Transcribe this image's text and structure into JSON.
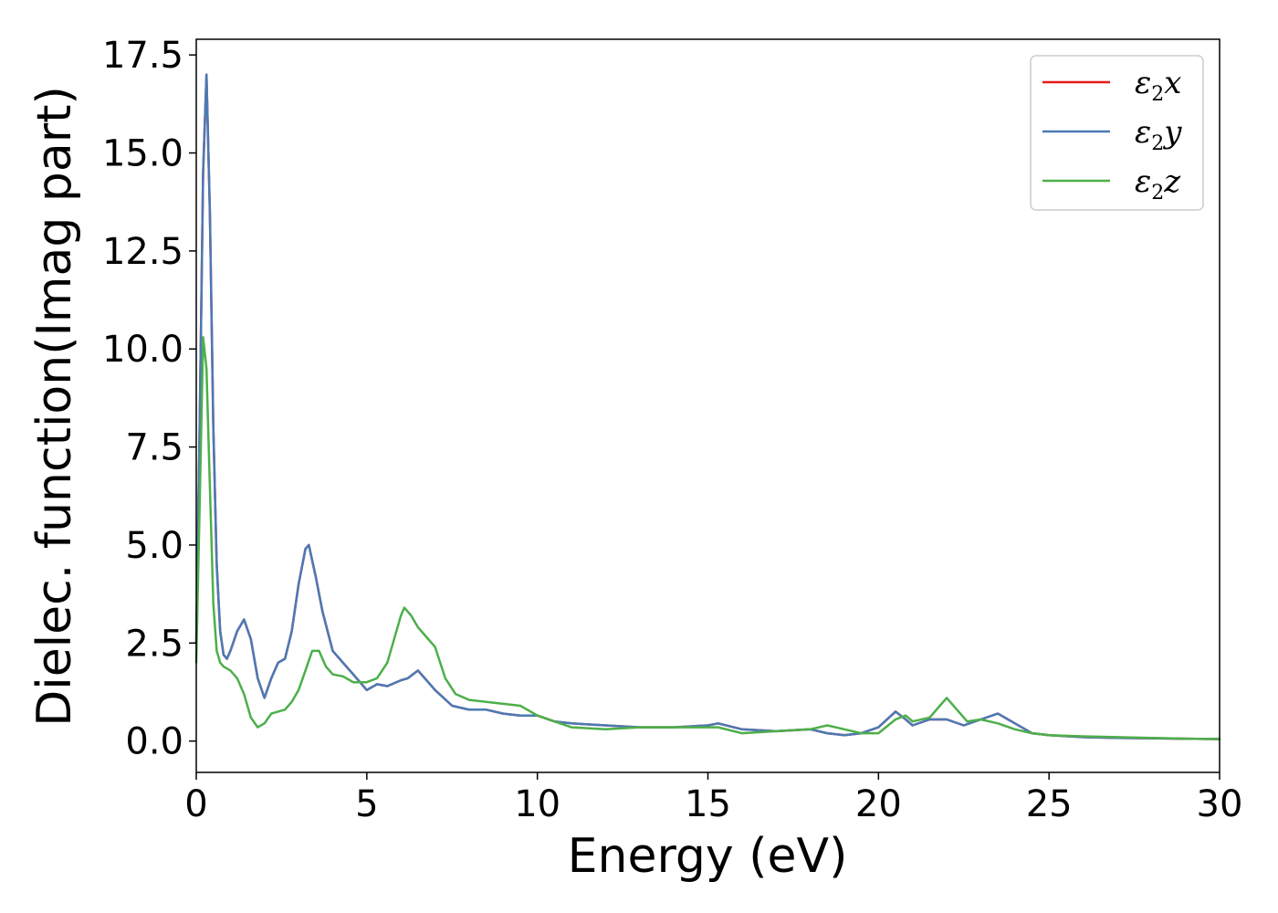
{
  "chart_data": {
    "type": "line",
    "xlabel": "Energy (eV)",
    "ylabel": "Dielec. function(Imag part)",
    "xlim": [
      0,
      30
    ],
    "ylim": [
      -0.8,
      17.9
    ],
    "xticks": [
      0,
      5,
      10,
      15,
      20,
      25,
      30
    ],
    "xtick_labels": [
      "0",
      "5",
      "10",
      "15",
      "20",
      "25",
      "30"
    ],
    "yticks": [
      0,
      2.5,
      5,
      7.5,
      10,
      12.5,
      15,
      17.5
    ],
    "ytick_labels": [
      "0.0",
      "2.5",
      "5.0",
      "7.5",
      "10.0",
      "12.5",
      "15.0",
      "17.5"
    ],
    "grid": false,
    "legend_position": "top-right",
    "series": [
      {
        "name": "ε2x",
        "legend_main": "ε",
        "legend_sub": "2",
        "legend_suffix": "x",
        "color": "#e41a1c",
        "x": [
          0,
          0.1,
          0.2,
          0.3,
          0.4,
          0.5,
          0.6,
          0.7,
          0.8,
          0.9,
          1.0,
          1.2,
          1.4,
          1.6,
          1.8,
          2.0,
          2.2,
          2.4,
          2.6,
          2.8,
          3.0,
          3.2,
          3.3,
          3.5,
          3.7,
          4.0,
          4.3,
          4.6,
          5.0,
          5.3,
          5.6,
          6.0,
          6.2,
          6.5,
          6.8,
          7.0,
          7.5,
          8.0,
          8.5,
          9.0,
          9.5,
          10.0,
          10.5,
          11.0,
          12.0,
          13.0,
          14.0,
          15.0,
          15.3,
          16.0,
          17.0,
          18.0,
          18.5,
          19.0,
          19.5,
          20.0,
          20.5,
          20.8,
          21.0,
          21.5,
          22.0,
          22.5,
          23.0,
          23.5,
          24.0,
          24.5,
          25.0,
          26.0,
          27.0,
          28.0,
          29.0,
          30.0
        ],
        "y": [
          2.5,
          8.0,
          14.5,
          17.0,
          13.5,
          8.0,
          4.5,
          2.8,
          2.2,
          2.1,
          2.3,
          2.8,
          3.1,
          2.6,
          1.6,
          1.1,
          1.6,
          2.0,
          2.1,
          2.8,
          4.0,
          4.9,
          5.0,
          4.2,
          3.3,
          2.3,
          2.0,
          1.7,
          1.3,
          1.45,
          1.4,
          1.55,
          1.6,
          1.8,
          1.5,
          1.3,
          0.9,
          0.8,
          0.8,
          0.7,
          0.65,
          0.65,
          0.5,
          0.45,
          0.4,
          0.35,
          0.35,
          0.4,
          0.45,
          0.3,
          0.25,
          0.3,
          0.2,
          0.15,
          0.2,
          0.35,
          0.75,
          0.55,
          0.4,
          0.55,
          0.55,
          0.4,
          0.55,
          0.7,
          0.45,
          0.2,
          0.15,
          0.1,
          0.08,
          0.07,
          0.06,
          0.05
        ]
      },
      {
        "name": "ε2y",
        "legend_main": "ε",
        "legend_sub": "2",
        "legend_suffix": "y",
        "color": "#4a7ab5",
        "x": [
          0,
          0.1,
          0.2,
          0.3,
          0.4,
          0.5,
          0.6,
          0.7,
          0.8,
          0.9,
          1.0,
          1.2,
          1.4,
          1.6,
          1.8,
          2.0,
          2.2,
          2.4,
          2.6,
          2.8,
          3.0,
          3.2,
          3.3,
          3.5,
          3.7,
          4.0,
          4.3,
          4.6,
          5.0,
          5.3,
          5.6,
          6.0,
          6.2,
          6.5,
          6.8,
          7.0,
          7.5,
          8.0,
          8.5,
          9.0,
          9.5,
          10.0,
          10.5,
          11.0,
          12.0,
          13.0,
          14.0,
          15.0,
          15.3,
          16.0,
          17.0,
          18.0,
          18.5,
          19.0,
          19.5,
          20.0,
          20.5,
          20.8,
          21.0,
          21.5,
          22.0,
          22.5,
          23.0,
          23.5,
          24.0,
          24.5,
          25.0,
          26.0,
          27.0,
          28.0,
          29.0,
          30.0
        ],
        "y": [
          2.5,
          8.0,
          14.5,
          17.0,
          13.5,
          8.0,
          4.5,
          2.8,
          2.2,
          2.1,
          2.3,
          2.8,
          3.1,
          2.6,
          1.6,
          1.1,
          1.6,
          2.0,
          2.1,
          2.8,
          4.0,
          4.9,
          5.0,
          4.2,
          3.3,
          2.3,
          2.0,
          1.7,
          1.3,
          1.45,
          1.4,
          1.55,
          1.6,
          1.8,
          1.5,
          1.3,
          0.9,
          0.8,
          0.8,
          0.7,
          0.65,
          0.65,
          0.5,
          0.45,
          0.4,
          0.35,
          0.35,
          0.4,
          0.45,
          0.3,
          0.25,
          0.3,
          0.2,
          0.15,
          0.2,
          0.35,
          0.75,
          0.55,
          0.4,
          0.55,
          0.55,
          0.4,
          0.55,
          0.7,
          0.45,
          0.2,
          0.15,
          0.1,
          0.08,
          0.07,
          0.06,
          0.05
        ]
      },
      {
        "name": "ε2z",
        "legend_main": "ε",
        "legend_sub": "2",
        "legend_suffix": "z",
        "color": "#4daf4a",
        "x": [
          0,
          0.1,
          0.2,
          0.3,
          0.4,
          0.5,
          0.6,
          0.7,
          0.8,
          1.0,
          1.2,
          1.4,
          1.6,
          1.8,
          2.0,
          2.2,
          2.4,
          2.6,
          2.8,
          3.0,
          3.2,
          3.4,
          3.6,
          3.8,
          4.0,
          4.3,
          4.6,
          5.0,
          5.3,
          5.6,
          6.0,
          6.1,
          6.3,
          6.5,
          6.8,
          7.0,
          7.3,
          7.6,
          8.0,
          8.5,
          9.0,
          9.5,
          10.0,
          10.5,
          11.0,
          12.0,
          13.0,
          14.0,
          15.0,
          15.3,
          16.0,
          17.0,
          18.0,
          18.5,
          19.0,
          19.5,
          20.0,
          20.5,
          20.8,
          21.0,
          21.5,
          21.8,
          22.0,
          22.3,
          22.6,
          23.0,
          23.5,
          24.0,
          24.5,
          25.0,
          26.0,
          27.0,
          28.0,
          29.0,
          30.0
        ],
        "y": [
          2.0,
          6.0,
          10.3,
          9.5,
          6.5,
          3.5,
          2.3,
          2.0,
          1.9,
          1.8,
          1.6,
          1.2,
          0.6,
          0.35,
          0.45,
          0.7,
          0.75,
          0.8,
          1.0,
          1.3,
          1.8,
          2.3,
          2.3,
          1.9,
          1.7,
          1.65,
          1.5,
          1.5,
          1.6,
          2.0,
          3.2,
          3.4,
          3.2,
          2.9,
          2.6,
          2.4,
          1.6,
          1.2,
          1.05,
          1.0,
          0.95,
          0.9,
          0.65,
          0.5,
          0.35,
          0.3,
          0.35,
          0.35,
          0.35,
          0.35,
          0.2,
          0.25,
          0.3,
          0.4,
          0.3,
          0.2,
          0.2,
          0.55,
          0.65,
          0.5,
          0.6,
          0.9,
          1.1,
          0.8,
          0.5,
          0.55,
          0.45,
          0.3,
          0.2,
          0.15,
          0.12,
          0.1,
          0.08,
          0.06,
          0.05
        ]
      }
    ]
  }
}
